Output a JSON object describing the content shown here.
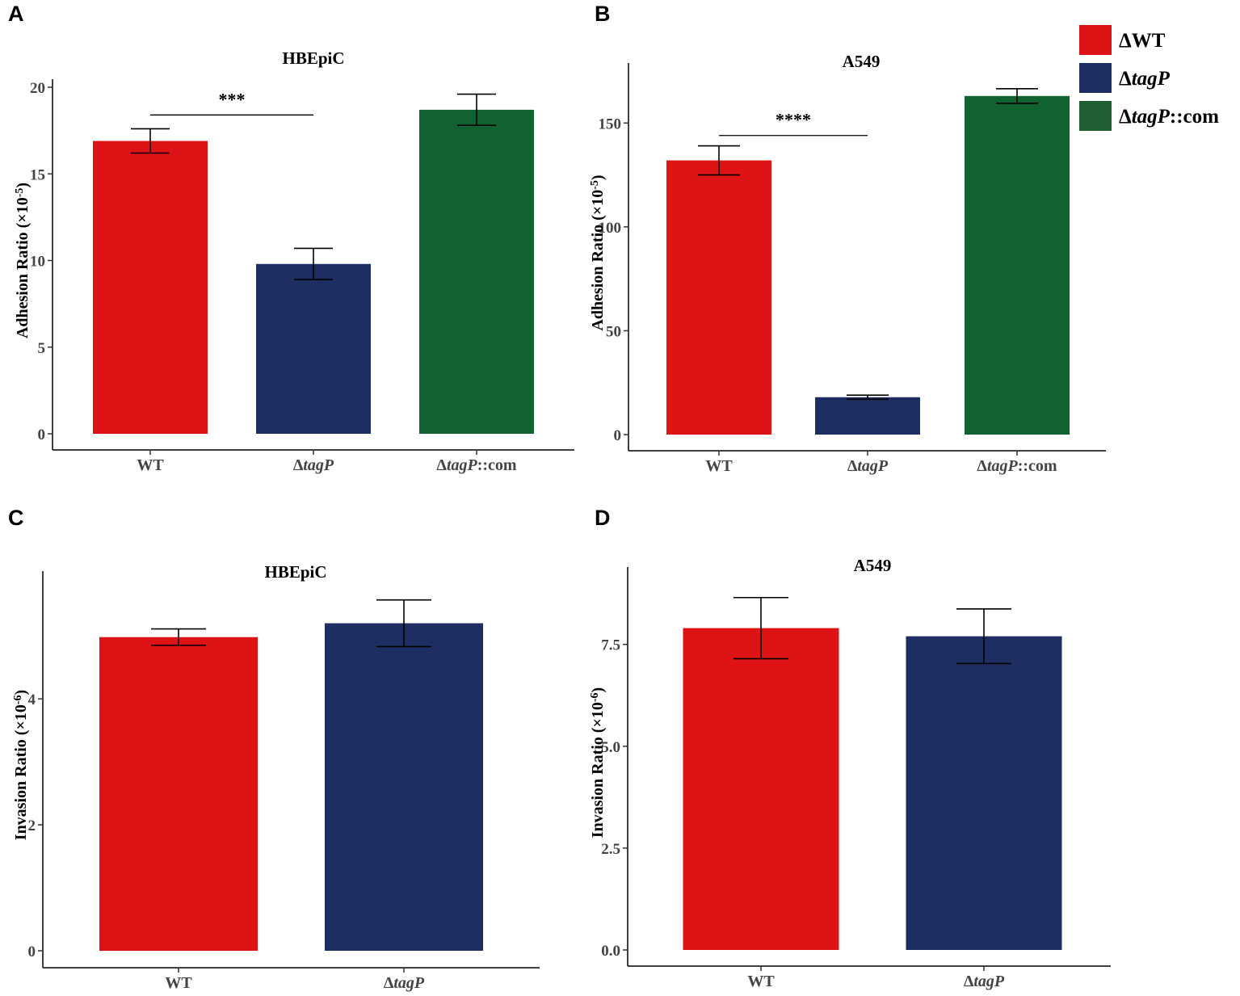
{
  "legend": {
    "items": [
      {
        "prefix": "Δ",
        "name": "WT",
        "italic": false,
        "suffix": "",
        "color": "#dd1316"
      },
      {
        "prefix": "Δ",
        "name": "tagP",
        "italic": true,
        "suffix": "",
        "color": "#1d2e62"
      },
      {
        "prefix": "Δ",
        "name": "tagP",
        "italic": true,
        "suffix": "::com",
        "color": "#1e5e30"
      }
    ]
  },
  "chart_data": [
    {
      "panel": "A",
      "type": "bar",
      "title": "HBEpiC",
      "ylabel_main": "Adhesion Ratio (×10",
      "ylabel_exp": "-5",
      "ylabel_close": ")",
      "ylim": [
        0,
        20
      ],
      "yticks": [
        0,
        5,
        10,
        15,
        20
      ],
      "categories": [
        {
          "prefix": "",
          "name": "WT",
          "italic": false,
          "suffix": ""
        },
        {
          "prefix": "Δ",
          "name": "tagP",
          "italic": true,
          "suffix": ""
        },
        {
          "prefix": "Δ",
          "name": "tagP",
          "italic": true,
          "suffix": "::com"
        }
      ],
      "values": [
        16.9,
        9.8,
        18.7
      ],
      "errors": [
        0.7,
        0.9,
        0.9
      ],
      "colors": [
        "#dd1316",
        "#1d2e62",
        "#116231"
      ],
      "significance": [
        {
          "from": 0,
          "to": 1,
          "label": "***",
          "y": 18.4
        }
      ]
    },
    {
      "panel": "B",
      "type": "bar",
      "title": "A549",
      "ylabel_main": "Adhesion Ratio (×10",
      "ylabel_exp": "-5",
      "ylabel_close": ")",
      "ylim": [
        0,
        175
      ],
      "yticks": [
        0,
        50,
        100,
        150
      ],
      "categories": [
        {
          "prefix": "",
          "name": "WT",
          "italic": false,
          "suffix": ""
        },
        {
          "prefix": "Δ",
          "name": "tagP",
          "italic": true,
          "suffix": ""
        },
        {
          "prefix": "Δ",
          "name": "tagP",
          "italic": true,
          "suffix": "::com"
        }
      ],
      "values": [
        132,
        18,
        163
      ],
      "errors": [
        7,
        1,
        3.5
      ],
      "colors": [
        "#dd1316",
        "#1d2e62",
        "#116231"
      ],
      "significance": [
        {
          "from": 0,
          "to": 1,
          "label": "****",
          "y": 144
        }
      ]
    },
    {
      "panel": "C",
      "type": "bar",
      "title": "HBEpiC",
      "ylabel_main": "Invasion Ratio (×10",
      "ylabel_exp": "-6",
      "ylabel_close": ")",
      "ylim": [
        0,
        5.9
      ],
      "yticks": [
        0,
        2,
        4
      ],
      "categories": [
        {
          "prefix": "",
          "name": "WT",
          "italic": false,
          "suffix": ""
        },
        {
          "prefix": "Δ",
          "name": "tagP",
          "italic": true,
          "suffix": ""
        }
      ],
      "values": [
        4.98,
        5.2
      ],
      "errors": [
        0.13,
        0.37
      ],
      "colors": [
        "#dd1316",
        "#1d2e62"
      ],
      "significance": []
    },
    {
      "panel": "D",
      "type": "bar",
      "title": "A549",
      "ylabel_main": "Invasion Ratio (×10",
      "ylabel_exp": "-6",
      "ylabel_close": ")",
      "ylim": [
        0,
        9.2
      ],
      "yticks": [
        0.0,
        2.5,
        5.0,
        7.5
      ],
      "ytick_decimals": 1,
      "categories": [
        {
          "prefix": "",
          "name": "WT",
          "italic": false,
          "suffix": ""
        },
        {
          "prefix": "Δ",
          "name": "tagP",
          "italic": true,
          "suffix": ""
        }
      ],
      "values": [
        7.9,
        7.7
      ],
      "errors": [
        0.75,
        0.67
      ],
      "colors": [
        "#dd1316",
        "#1d2e62"
      ],
      "significance": []
    }
  ]
}
